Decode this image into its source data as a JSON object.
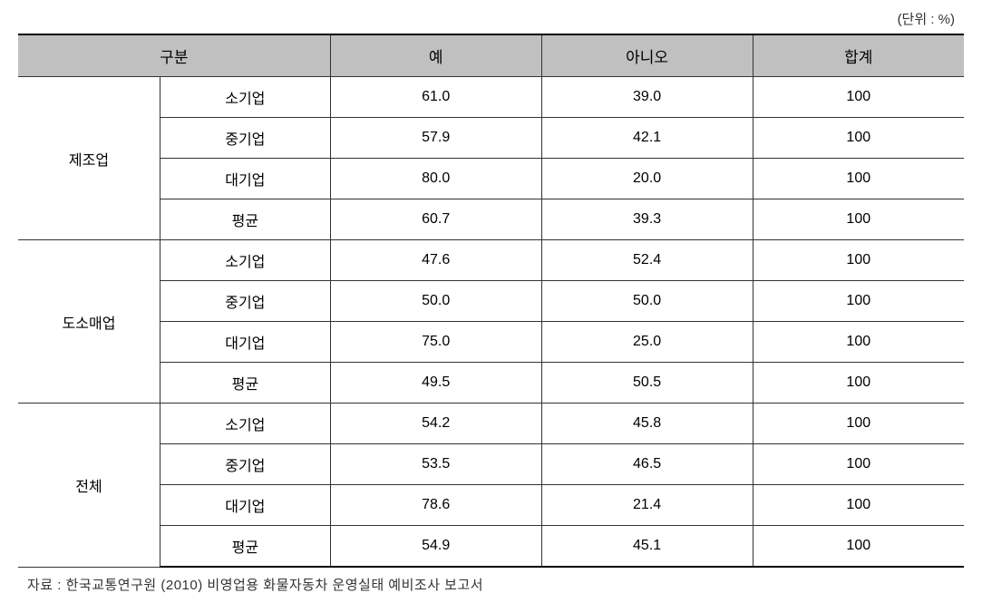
{
  "unit_label": "(단위 : %)",
  "headers": {
    "category": "구분",
    "yes": "예",
    "no": "아니오",
    "total": "합계"
  },
  "groups": [
    {
      "label": "제조업",
      "rows": [
        {
          "sub": "소기업",
          "yes": "61.0",
          "no": "39.0",
          "total": "100"
        },
        {
          "sub": "중기업",
          "yes": "57.9",
          "no": "42.1",
          "total": "100"
        },
        {
          "sub": "대기업",
          "yes": "80.0",
          "no": "20.0",
          "total": "100"
        },
        {
          "sub": "평균",
          "yes": "60.7",
          "no": "39.3",
          "total": "100"
        }
      ]
    },
    {
      "label": "도소매업",
      "rows": [
        {
          "sub": "소기업",
          "yes": "47.6",
          "no": "52.4",
          "total": "100"
        },
        {
          "sub": "중기업",
          "yes": "50.0",
          "no": "50.0",
          "total": "100"
        },
        {
          "sub": "대기업",
          "yes": "75.0",
          "no": "25.0",
          "total": "100"
        },
        {
          "sub": "평균",
          "yes": "49.5",
          "no": "50.5",
          "total": "100"
        }
      ]
    },
    {
      "label": "전체",
      "rows": [
        {
          "sub": "소기업",
          "yes": "54.2",
          "no": "45.8",
          "total": "100"
        },
        {
          "sub": "중기업",
          "yes": "53.5",
          "no": "46.5",
          "total": "100"
        },
        {
          "sub": "대기업",
          "yes": "78.6",
          "no": "21.4",
          "total": "100"
        },
        {
          "sub": "평균",
          "yes": "54.9",
          "no": "45.1",
          "total": "100"
        }
      ]
    }
  ],
  "source_note": "자료 : 한국교통연구원 (2010) 비영업용 화물자동차 운영실태 예비조사 보고서",
  "styling": {
    "header_bg_color": "#c0c0c0",
    "border_color": "#333333",
    "thick_border_color": "#000000",
    "body_bg": "#ffffff",
    "text_color": "#000000",
    "header_fontsize": 17,
    "cell_fontsize": 16,
    "note_fontsize": 15
  }
}
